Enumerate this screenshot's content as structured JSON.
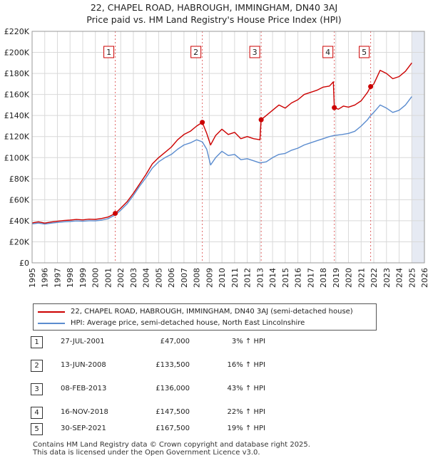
{
  "title_line1": "22, CHAPEL ROAD, HABROUGH, IMMINGHAM, DN40 3AJ",
  "title_line2": "Price paid vs. HM Land Registry's House Price Index (HPI)",
  "chart_data": {
    "type": "line",
    "xlim": [
      1995,
      2026
    ],
    "ylim": [
      0,
      220000
    ],
    "x_ticks": [
      1995,
      1996,
      1997,
      1998,
      1999,
      2000,
      2001,
      2002,
      2003,
      2004,
      2005,
      2006,
      2007,
      2008,
      2009,
      2010,
      2011,
      2012,
      2013,
      2014,
      2015,
      2016,
      2017,
      2018,
      2019,
      2020,
      2021,
      2022,
      2023,
      2024,
      2025,
      2026
    ],
    "y_ticks": [
      0,
      20000,
      40000,
      60000,
      80000,
      100000,
      120000,
      140000,
      160000,
      180000,
      200000,
      220000
    ],
    "y_tick_labels": [
      "£0",
      "£20K",
      "£40K",
      "£60K",
      "£80K",
      "£100K",
      "£120K",
      "£140K",
      "£160K",
      "£180K",
      "£200K",
      "£220K"
    ],
    "grid": true,
    "future_shade_from": 2025.0,
    "series": [
      {
        "name": "22, CHAPEL ROAD, HABROUGH, IMMINGHAM, DN40 3AJ (semi-detached house)",
        "color": "#cc0000",
        "points": [
          [
            1995.0,
            38000
          ],
          [
            1995.5,
            39000
          ],
          [
            1996.0,
            37800
          ],
          [
            1996.5,
            38800
          ],
          [
            1997.0,
            39500
          ],
          [
            1997.5,
            40200
          ],
          [
            1998.0,
            40600
          ],
          [
            1998.5,
            41200
          ],
          [
            1999.0,
            40800
          ],
          [
            1999.5,
            41500
          ],
          [
            2000.0,
            41300
          ],
          [
            2000.5,
            42200
          ],
          [
            2001.0,
            43500
          ],
          [
            2001.57,
            47000
          ],
          [
            2002.0,
            52000
          ],
          [
            2002.5,
            58000
          ],
          [
            2003.0,
            66000
          ],
          [
            2003.5,
            75000
          ],
          [
            2004.0,
            84000
          ],
          [
            2004.5,
            94000
          ],
          [
            2005.0,
            100000
          ],
          [
            2005.5,
            105000
          ],
          [
            2006.0,
            110000
          ],
          [
            2006.5,
            117000
          ],
          [
            2007.0,
            122000
          ],
          [
            2007.5,
            125000
          ],
          [
            2008.0,
            130000
          ],
          [
            2008.45,
            133500
          ],
          [
            2008.8,
            123000
          ],
          [
            2009.1,
            112000
          ],
          [
            2009.5,
            121000
          ],
          [
            2010.0,
            127000
          ],
          [
            2010.5,
            122000
          ],
          [
            2011.0,
            124000
          ],
          [
            2011.5,
            118000
          ],
          [
            2012.0,
            120000
          ],
          [
            2012.5,
            118000
          ],
          [
            2013.0,
            117000
          ],
          [
            2013.1,
            136000
          ],
          [
            2013.5,
            140000
          ],
          [
            2014.0,
            145000
          ],
          [
            2014.5,
            150000
          ],
          [
            2015.0,
            147000
          ],
          [
            2015.5,
            152000
          ],
          [
            2016.0,
            155000
          ],
          [
            2016.5,
            160000
          ],
          [
            2017.0,
            162000
          ],
          [
            2017.5,
            164000
          ],
          [
            2018.0,
            167000
          ],
          [
            2018.5,
            168000
          ],
          [
            2018.8,
            172000
          ],
          [
            2018.88,
            147500
          ],
          [
            2019.2,
            146000
          ],
          [
            2019.6,
            149000
          ],
          [
            2020.0,
            148000
          ],
          [
            2020.5,
            150000
          ],
          [
            2021.0,
            154000
          ],
          [
            2021.5,
            162000
          ],
          [
            2021.75,
            167500
          ],
          [
            2022.0,
            170000
          ],
          [
            2022.5,
            183000
          ],
          [
            2023.0,
            180000
          ],
          [
            2023.5,
            175000
          ],
          [
            2024.0,
            177000
          ],
          [
            2024.5,
            182000
          ],
          [
            2025.0,
            190000
          ]
        ]
      },
      {
        "name": "HPI: Average price, semi-detached house, North East Lincolnshire",
        "color": "#5b8ccf",
        "points": [
          [
            1995.0,
            37000
          ],
          [
            1995.5,
            37800
          ],
          [
            1996.0,
            36800
          ],
          [
            1996.5,
            37700
          ],
          [
            1997.0,
            38400
          ],
          [
            1997.5,
            39000
          ],
          [
            1998.0,
            39300
          ],
          [
            1998.5,
            39800
          ],
          [
            1999.0,
            39500
          ],
          [
            1999.5,
            40000
          ],
          [
            2000.0,
            39900
          ],
          [
            2000.5,
            40600
          ],
          [
            2001.0,
            42000
          ],
          [
            2001.57,
            45500
          ],
          [
            2002.0,
            50000
          ],
          [
            2002.5,
            56000
          ],
          [
            2003.0,
            64000
          ],
          [
            2003.5,
            73000
          ],
          [
            2004.0,
            81000
          ],
          [
            2004.5,
            90000
          ],
          [
            2005.0,
            96000
          ],
          [
            2005.5,
            100000
          ],
          [
            2006.0,
            103000
          ],
          [
            2006.5,
            108000
          ],
          [
            2007.0,
            112000
          ],
          [
            2007.5,
            114000
          ],
          [
            2008.0,
            117000
          ],
          [
            2008.45,
            115000
          ],
          [
            2008.8,
            108000
          ],
          [
            2009.1,
            93000
          ],
          [
            2009.5,
            100000
          ],
          [
            2010.0,
            106000
          ],
          [
            2010.5,
            102000
          ],
          [
            2011.0,
            103000
          ],
          [
            2011.5,
            98000
          ],
          [
            2012.0,
            99000
          ],
          [
            2012.5,
            97000
          ],
          [
            2013.0,
            95000
          ],
          [
            2013.5,
            96000
          ],
          [
            2014.0,
            100000
          ],
          [
            2014.5,
            103000
          ],
          [
            2015.0,
            104000
          ],
          [
            2015.5,
            107000
          ],
          [
            2016.0,
            109000
          ],
          [
            2016.5,
            112000
          ],
          [
            2017.0,
            114000
          ],
          [
            2017.5,
            116000
          ],
          [
            2018.0,
            118000
          ],
          [
            2018.5,
            120000
          ],
          [
            2018.88,
            121000
          ],
          [
            2019.5,
            122000
          ],
          [
            2020.0,
            123000
          ],
          [
            2020.5,
            125000
          ],
          [
            2021.0,
            130000
          ],
          [
            2021.5,
            136000
          ],
          [
            2021.75,
            140000
          ],
          [
            2022.0,
            143000
          ],
          [
            2022.5,
            150000
          ],
          [
            2023.0,
            147000
          ],
          [
            2023.5,
            143000
          ],
          [
            2024.0,
            145000
          ],
          [
            2024.5,
            150000
          ],
          [
            2025.0,
            158000
          ]
        ]
      }
    ],
    "markers": [
      {
        "label": "1",
        "x": 2001.57,
        "y": 47000
      },
      {
        "label": "2",
        "x": 2008.45,
        "y": 133500
      },
      {
        "label": "3",
        "x": 2013.1,
        "y": 136000
      },
      {
        "label": "4",
        "x": 2018.88,
        "y": 147500
      },
      {
        "label": "5",
        "x": 2021.75,
        "y": 167500
      }
    ]
  },
  "legend": {
    "red_label": "22, CHAPEL ROAD, HABROUGH, IMMINGHAM, DN40 3AJ (semi-detached house)",
    "blue_label": "HPI: Average price, semi-detached house, North East Lincolnshire"
  },
  "sales": [
    {
      "num": "1",
      "date": "27-JUL-2001",
      "price": "£47,000",
      "hpi": "3% ↑ HPI"
    },
    {
      "num": "2",
      "date": "13-JUN-2008",
      "price": "£133,500",
      "hpi": "16% ↑ HPI"
    },
    {
      "num": "3",
      "date": "08-FEB-2013",
      "price": "£136,000",
      "hpi": "43% ↑ HPI"
    },
    {
      "num": "4",
      "date": "16-NOV-2018",
      "price": "£147,500",
      "hpi": "22% ↑ HPI"
    },
    {
      "num": "5",
      "date": "30-SEP-2021",
      "price": "£167,500",
      "hpi": "19% ↑ HPI"
    }
  ],
  "footer_line1": "Contains HM Land Registry data © Crown copyright and database right 2025.",
  "footer_line2": "This data is licensed under the Open Government Licence v3.0."
}
